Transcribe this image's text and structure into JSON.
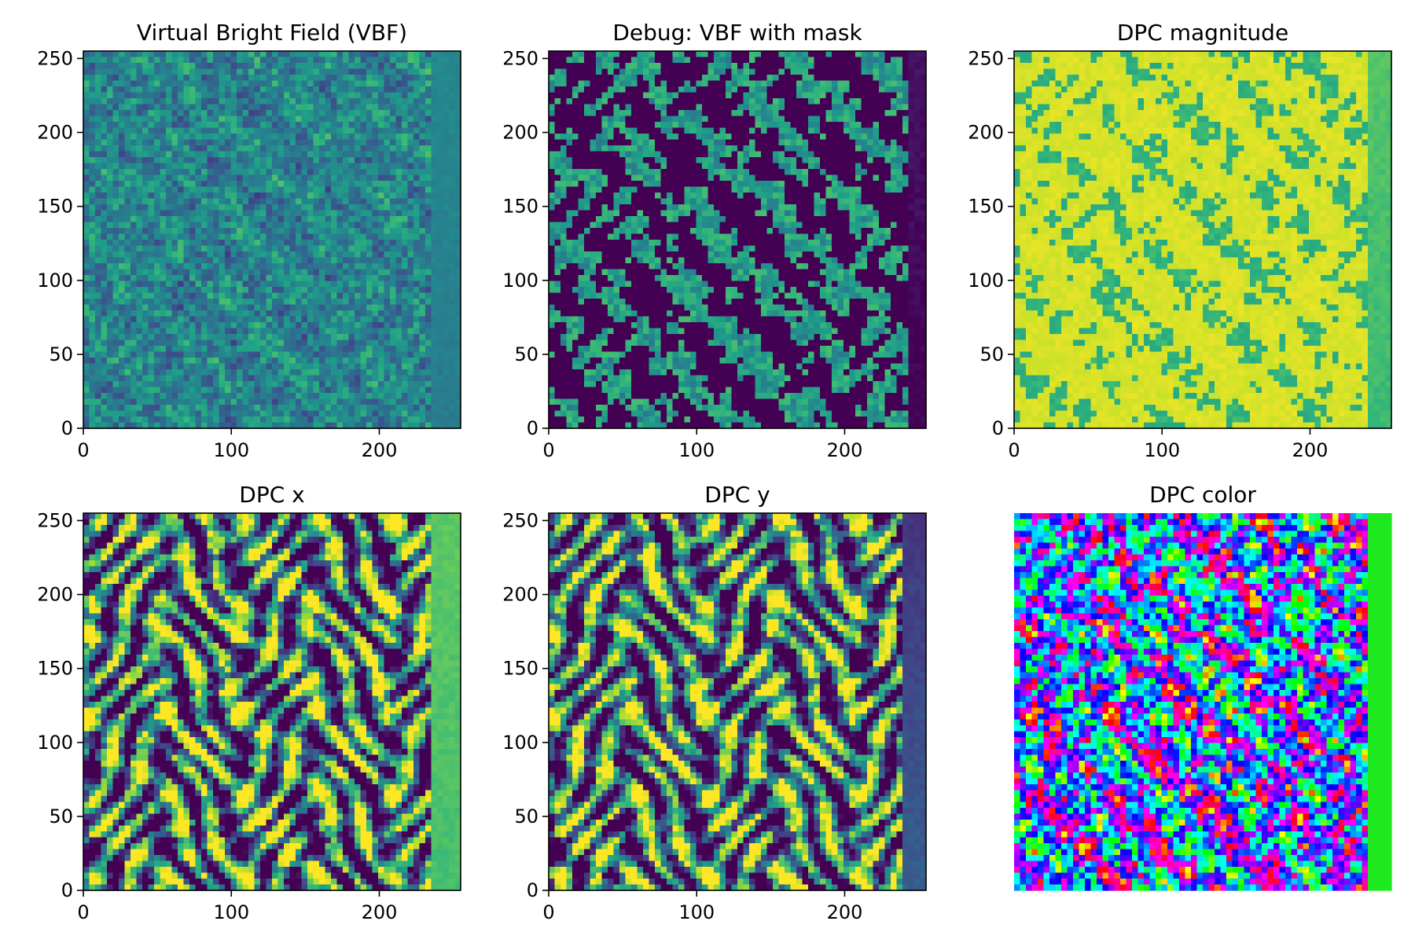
{
  "chart_data": [
    {
      "type": "heatmap",
      "title": "Virtual Bright Field (VBF)",
      "xlim": [
        0,
        255
      ],
      "ylim": [
        0,
        255
      ],
      "xticks": [
        0,
        100,
        200
      ],
      "yticks": [
        0,
        50,
        100,
        150,
        200,
        250
      ],
      "xticklabels": [
        "0",
        "100",
        "200"
      ],
      "yticklabels": [
        "0",
        "50",
        "100",
        "150",
        "200",
        "250"
      ],
      "colormap": "viridis",
      "pattern": "noisy",
      "edge_band": {
        "x_start": 234,
        "level": 0.42
      },
      "axis_visible": true
    },
    {
      "type": "heatmap",
      "title": "Debug: VBF with mask",
      "xlim": [
        0,
        255
      ],
      "ylim": [
        0,
        255
      ],
      "xticks": [
        0,
        100,
        200
      ],
      "yticks": [
        0,
        50,
        100,
        150,
        200,
        250
      ],
      "xticklabels": [
        "0",
        "100",
        "200"
      ],
      "yticklabels": [
        "0",
        "50",
        "100",
        "150",
        "200",
        "250"
      ],
      "colormap": "viridis",
      "pattern": "mask",
      "edge_band": {
        "x_start": 242,
        "level": 0.0
      },
      "axis_visible": true
    },
    {
      "type": "heatmap",
      "title": "DPC magnitude",
      "xlim": [
        0,
        255
      ],
      "ylim": [
        0,
        255
      ],
      "xticks": [
        0,
        100,
        200
      ],
      "yticks": [
        0,
        50,
        100,
        150,
        200,
        250
      ],
      "xticklabels": [
        "0",
        "100",
        "200"
      ],
      "yticklabels": [
        "0",
        "50",
        "100",
        "150",
        "200",
        "250"
      ],
      "colormap": "viridis",
      "pattern": "bright",
      "edge_band": {
        "x_start": 240,
        "level": 0.68
      },
      "axis_visible": true
    },
    {
      "type": "heatmap",
      "title": "DPC x",
      "xlim": [
        0,
        255
      ],
      "ylim": [
        0,
        255
      ],
      "xticks": [
        0,
        100,
        200
      ],
      "yticks": [
        0,
        50,
        100,
        150,
        200,
        250
      ],
      "xticklabels": [
        "0",
        "100",
        "200"
      ],
      "yticklabels": [
        "0",
        "50",
        "100",
        "150",
        "200",
        "250"
      ],
      "colormap": "viridis",
      "pattern": "relief",
      "edge_band": {
        "x_start": 236,
        "level": 0.7
      },
      "axis_visible": true
    },
    {
      "type": "heatmap",
      "title": "DPC y",
      "xlim": [
        0,
        255
      ],
      "ylim": [
        0,
        255
      ],
      "xticks": [
        0,
        100,
        200
      ],
      "yticks": [
        0,
        50,
        100,
        150,
        200,
        250
      ],
      "xticklabels": [
        "0",
        "100",
        "200"
      ],
      "yticklabels": [
        "0",
        "50",
        "100",
        "150",
        "200",
        "250"
      ],
      "colormap": "viridis",
      "pattern": "relief",
      "edge_band": {
        "x_start": 238,
        "level": 0.3
      },
      "axis_visible": true
    },
    {
      "type": "heatmap",
      "title": "DPC color",
      "xlim": [
        0,
        255
      ],
      "ylim": [
        0,
        255
      ],
      "xticks": [],
      "yticks": [],
      "colormap": "hsv",
      "pattern": "hue",
      "edge_band": {
        "x_start": 240,
        "color": "#1ee81e"
      },
      "axis_visible": false
    }
  ]
}
